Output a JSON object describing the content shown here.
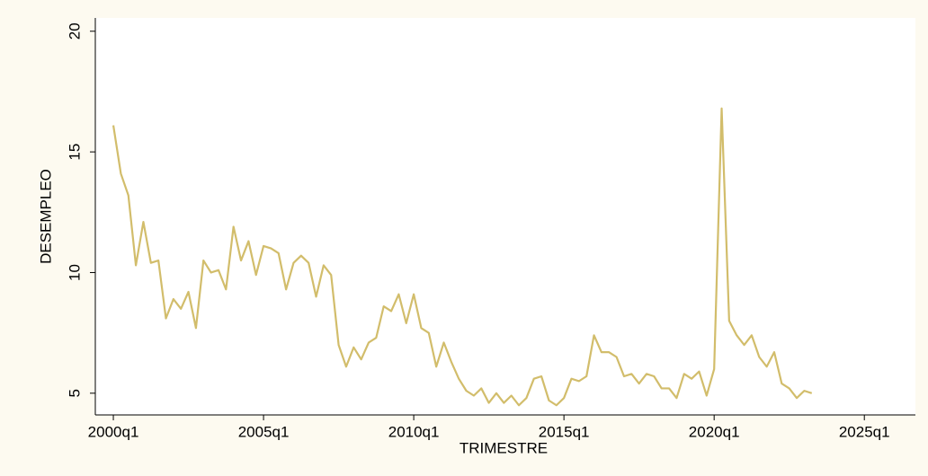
{
  "chart_data": {
    "type": "line",
    "x_label": "TRIMESTRE",
    "y_label": "DESEMPLEO",
    "x": [
      160,
      161,
      162,
      163,
      164,
      165,
      166,
      167,
      168,
      169,
      170,
      171,
      172,
      173,
      174,
      175,
      176,
      177,
      178,
      179,
      180,
      181,
      182,
      183,
      184,
      185,
      186,
      187,
      188,
      189,
      190,
      191,
      192,
      193,
      194,
      195,
      196,
      197,
      198,
      199,
      200,
      201,
      202,
      203,
      204,
      205,
      206,
      207,
      208,
      209,
      210,
      211,
      212,
      213,
      214,
      215,
      216,
      217,
      218,
      219,
      220,
      221,
      222,
      223,
      224,
      225,
      226,
      227,
      228,
      229,
      230,
      231,
      232,
      233,
      234,
      235,
      236,
      237,
      238,
      239,
      240,
      241,
      242,
      243,
      244,
      245,
      246,
      247,
      248,
      249,
      250,
      251,
      252,
      253
    ],
    "series": [
      {
        "name": "DESEMPLEO",
        "color": "#d2bd6b",
        "values": [
          16.1,
          14.1,
          13.2,
          10.3,
          12.1,
          10.4,
          10.5,
          8.1,
          8.9,
          8.5,
          9.2,
          7.7,
          10.5,
          10.0,
          10.1,
          9.3,
          11.9,
          10.5,
          11.3,
          9.9,
          11.1,
          11.0,
          10.8,
          9.3,
          10.4,
          10.7,
          10.4,
          9.0,
          10.3,
          9.9,
          7.0,
          6.1,
          6.9,
          6.4,
          7.1,
          7.3,
          8.6,
          8.4,
          9.1,
          7.9,
          9.1,
          7.7,
          7.5,
          6.1,
          7.1,
          6.3,
          5.6,
          5.1,
          4.9,
          5.2,
          4.6,
          5.0,
          4.6,
          4.9,
          4.5,
          4.8,
          5.6,
          5.7,
          4.7,
          4.5,
          4.8,
          5.6,
          5.5,
          5.7,
          7.4,
          6.7,
          6.7,
          6.5,
          5.7,
          5.8,
          5.4,
          5.8,
          5.7,
          5.2,
          5.2,
          4.8,
          5.8,
          5.6,
          5.9,
          4.9,
          6.0,
          16.8,
          8.0,
          7.4,
          7.0,
          7.4,
          6.5,
          6.1,
          6.7,
          5.4,
          5.2,
          4.8,
          5.1,
          5.0
        ]
      }
    ],
    "xlim": [
      157.6,
      266.8
    ],
    "xticks": [
      {
        "value": 160,
        "label": "2000q1"
      },
      {
        "value": 180,
        "label": "2005q1"
      },
      {
        "value": 200,
        "label": "2010q1"
      },
      {
        "value": 220,
        "label": "2015q1"
      },
      {
        "value": 240,
        "label": "2020q1"
      },
      {
        "value": 260,
        "label": "2025q1"
      }
    ],
    "ylim": [
      4.1,
      20.55
    ],
    "yticks": [
      5,
      10,
      15,
      20
    ],
    "grid": false
  }
}
